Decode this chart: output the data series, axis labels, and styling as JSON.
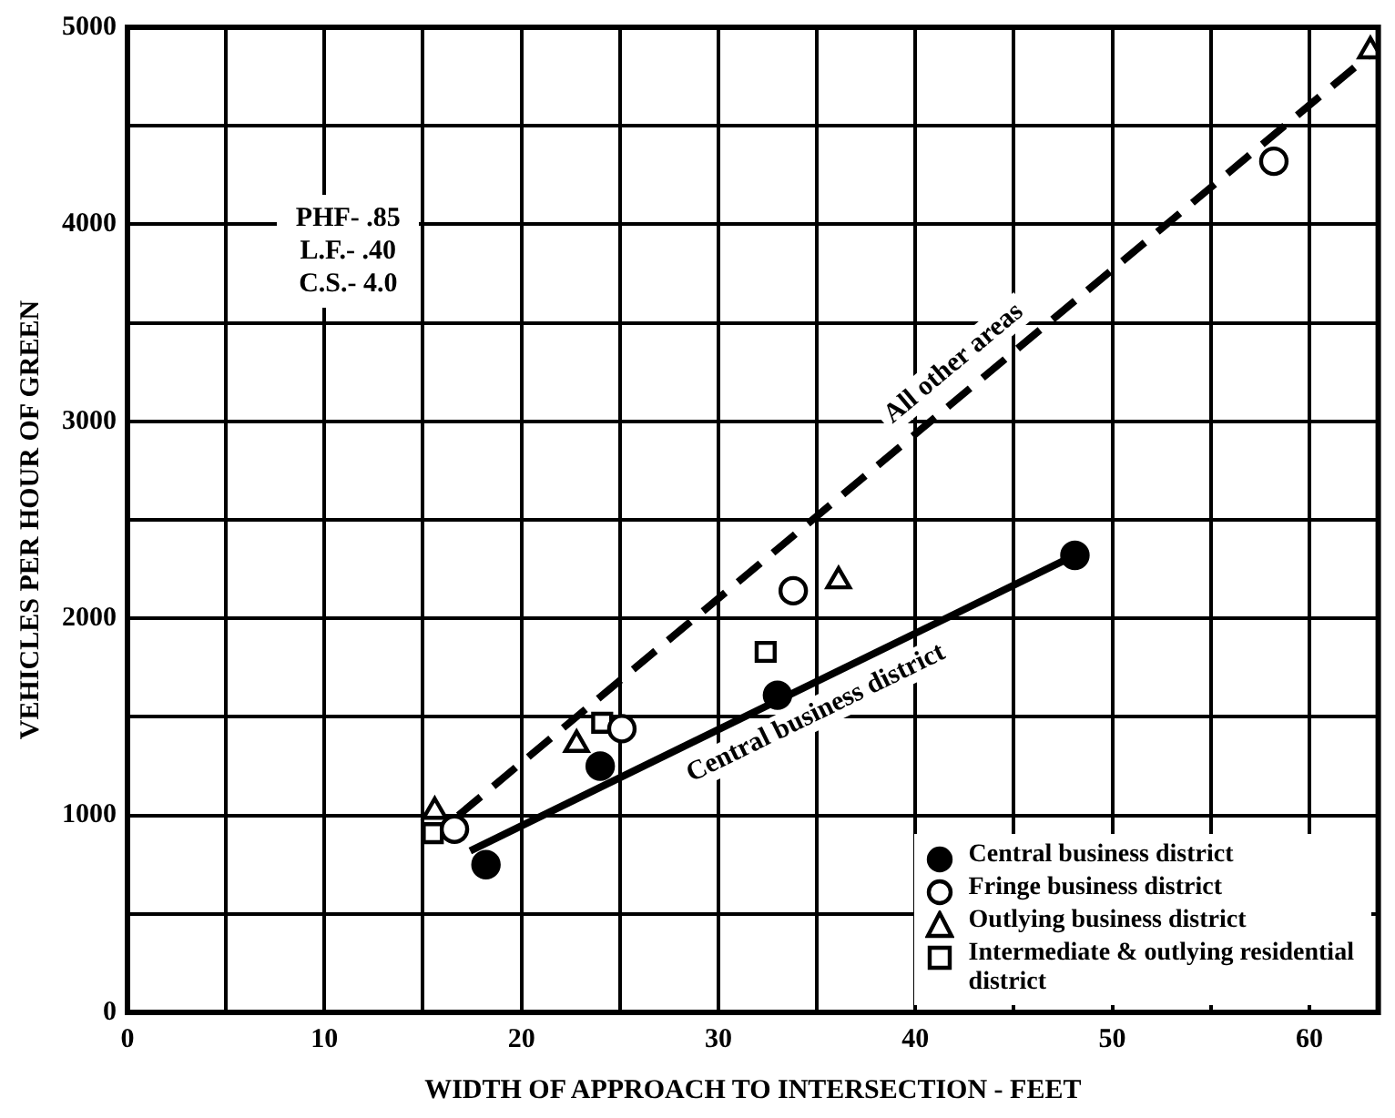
{
  "chart_data": {
    "type": "scatter",
    "xlabel": "WIDTH OF APPROACH TO INTERSECTION - FEET",
    "ylabel": "VEHICLES PER HOUR OF GREEN",
    "xlim": [
      0,
      63.5
    ],
    "xticks": [
      0,
      {
        "value": 5,
        "label": null
      },
      10,
      {
        "value": 15,
        "label": null
      },
      20,
      {
        "value": 25,
        "label": null
      },
      30,
      {
        "value": 35,
        "label": null
      },
      40,
      {
        "value": 45,
        "label": null
      },
      50,
      {
        "value": 55,
        "label": null
      },
      60
    ],
    "ylim": [
      0,
      5000
    ],
    "yticks": [
      0,
      {
        "value": 500,
        "label": null
      },
      1000,
      {
        "value": 1500,
        "label": null
      },
      2000,
      {
        "value": 2500,
        "label": null
      },
      3000,
      {
        "value": 3500,
        "label": null
      },
      4000,
      {
        "value": 4500,
        "label": null
      },
      5000
    ],
    "grid": true,
    "legend": "bottom right",
    "series": [
      {
        "name": "Central business district",
        "color": "#000000",
        "marker": "circle",
        "x": [
          18.2,
          24.0,
          33.0,
          48.1
        ],
        "values": [
          750,
          1250,
          1610,
          2320
        ]
      },
      {
        "name": "Fringe business district",
        "color": "#ffffff",
        "marker": "circle",
        "x": [
          16.6,
          25.1,
          33.8,
          58.2
        ],
        "values": [
          930,
          1440,
          2140,
          4320
        ]
      },
      {
        "name": "Outlying business district",
        "color": "#ffffff",
        "marker": "triangle",
        "x": [
          15.6,
          22.8,
          36.1,
          63.1
        ],
        "values": [
          1020,
          1360,
          2190,
          4880
        ]
      },
      {
        "name": "Intermediate & outlying residential district",
        "color": "#ffffff",
        "marker": "square",
        "x": [
          15.5,
          24.1,
          32.4
        ],
        "values": [
          910,
          1470,
          1830
        ]
      },
      {
        "type": "line",
        "color": "#000000",
        "marker": "none",
        "line_style": "solid",
        "x": [
          17.4,
          48.1
        ],
        "values": [
          820,
          2320
        ]
      },
      {
        "type": "line",
        "color": "#000000",
        "marker": "none",
        "line_style": "dashed",
        "x": [
          16.8,
          63.3
        ],
        "values": [
          1000,
          4880
        ]
      }
    ],
    "annotations": [
      "PHF- .85\nL.F.- .40\nC.S.- 4.0",
      {
        "text": "All other areas",
        "x": 42.9,
        "y": 3180
      },
      {
        "text": "Central business district",
        "x": 34.3,
        "y": 1650
      }
    ]
  }
}
